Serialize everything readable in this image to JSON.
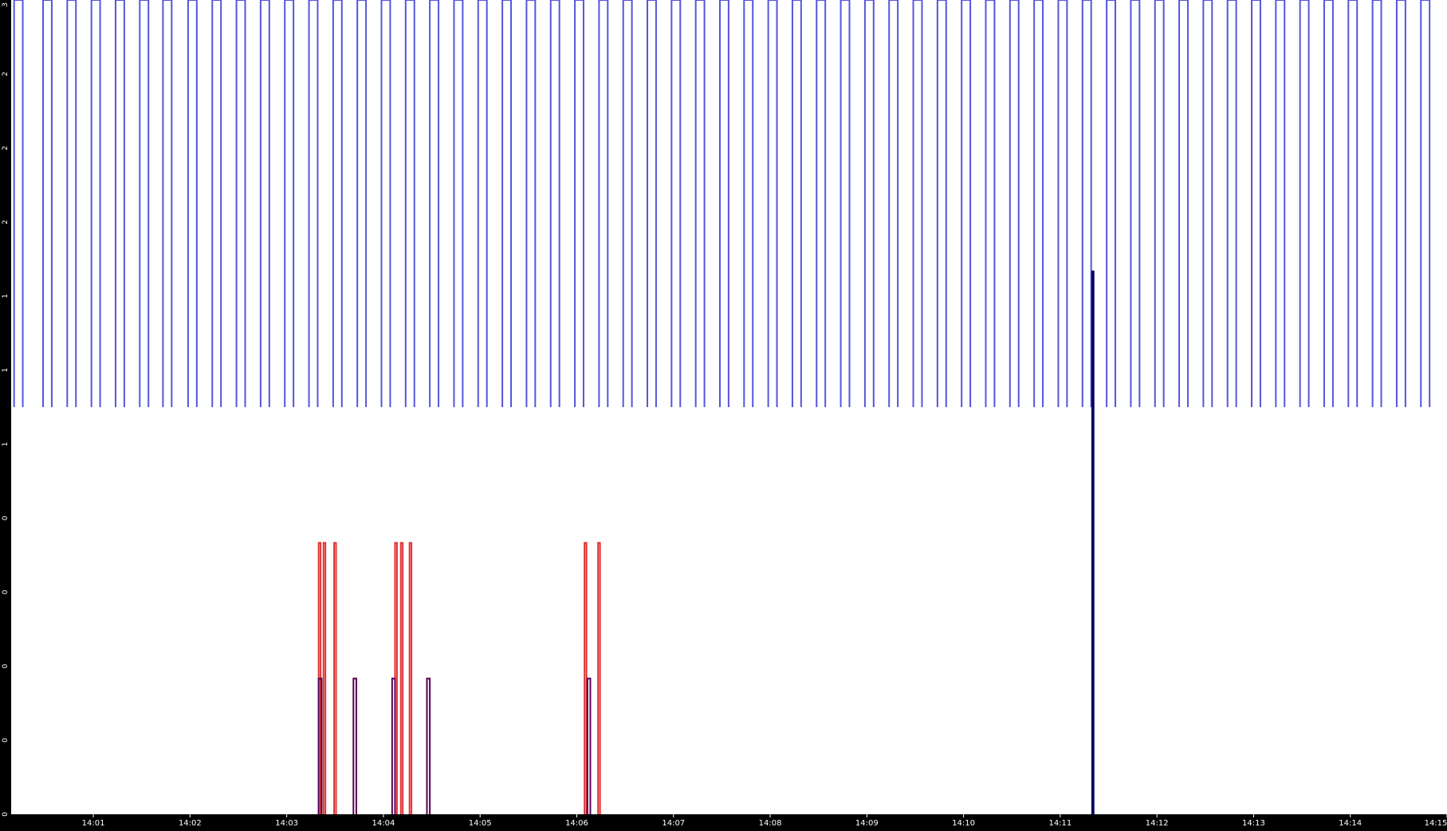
{
  "chart_data": {
    "type": "line",
    "title": "",
    "xlabel": "",
    "ylabel": "",
    "background_color": "#000000",
    "plot_background_color": "#ffffff",
    "x_tick_labels": [
      "14:01",
      "14:02",
      "14:03",
      "14:04",
      "14:05",
      "14:06",
      "14:07",
      "14:08",
      "14:09",
      "14:10",
      "14:11",
      "14:12",
      "14:13",
      "14:14",
      "14:15"
    ],
    "y_tick_labels": [
      "0",
      "0",
      "0",
      "0",
      "0",
      "1",
      "1",
      "1",
      "2",
      "2",
      "2",
      "3"
    ],
    "x_range_minutes": [
      840.15,
      855.0
    ],
    "y_range": [
      0,
      3
    ],
    "series": [
      {
        "color": "#5555dd",
        "pulse_low": 1.5,
        "pulse_high": 3,
        "pulse_starts_minutes": [
          840.18,
          840.48,
          840.73,
          840.98,
          841.23,
          841.48,
          841.72,
          841.98,
          842.23,
          842.48,
          842.73,
          842.98,
          843.23,
          843.48,
          843.73,
          843.98,
          844.23,
          844.48,
          844.73,
          844.98,
          845.23,
          845.48,
          845.73,
          845.98,
          846.23,
          846.48,
          846.73,
          846.98,
          847.23,
          847.48,
          847.73,
          847.98,
          848.23,
          848.48,
          848.73,
          848.98,
          849.23,
          849.48,
          849.73,
          849.98,
          850.23,
          850.48,
          850.73,
          850.98,
          851.23,
          851.48,
          851.73,
          851.98,
          852.23,
          852.48,
          852.73,
          852.98,
          853.23,
          853.48,
          853.73,
          853.98,
          854.23,
          854.48,
          854.73
        ],
        "pulse_width_minutes": 0.09
      },
      {
        "color": "#dd3333",
        "pulse_low": 0,
        "pulse_high": 1,
        "pulse_starts_minutes": [
          843.33,
          843.38,
          843.49,
          844.12,
          844.18,
          844.27,
          846.08,
          846.22
        ],
        "pulse_width_minutes": 0.02
      },
      {
        "color": "#550055",
        "pulse_low": 0,
        "pulse_high": 0.5,
        "pulse_starts_minutes": [
          843.33,
          843.69,
          844.09,
          844.45,
          846.11
        ],
        "pulse_width_minutes": 0.03
      },
      {
        "color": "#000066",
        "pulse_low": 0,
        "pulse_high": 2,
        "pulse_starts_minutes": [
          851.33
        ],
        "pulse_width_minutes": 0.015
      }
    ],
    "grid": false,
    "legend": "none"
  }
}
